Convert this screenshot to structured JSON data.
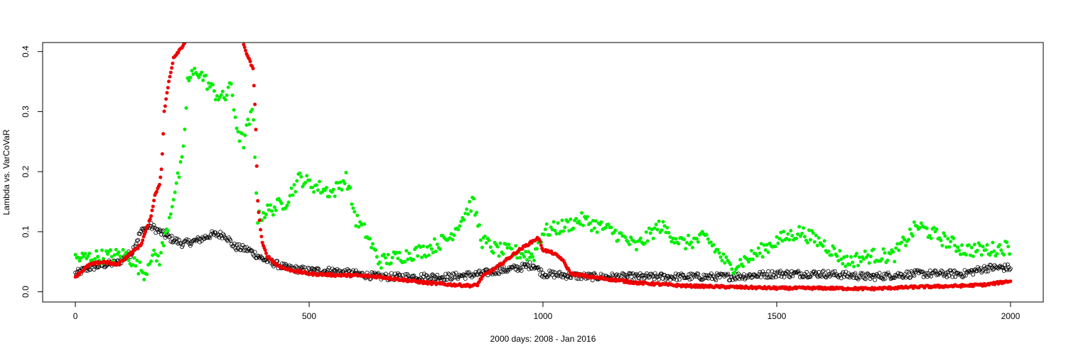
{
  "chart_data": {
    "type": "scatter",
    "xlabel": "2000 days: 2008 - Jan 2016",
    "ylabel": "Lambda vs. VarCoVaR",
    "xlim": [
      -70,
      2070
    ],
    "ylim": [
      -0.017,
      0.415
    ],
    "xticks": [
      0,
      500,
      1000,
      1500,
      2000
    ],
    "yticks": [
      0.0,
      0.1,
      0.2,
      0.3,
      0.4
    ],
    "xtick_labels": [
      "0",
      "500",
      "1000",
      "1500",
      "2000"
    ],
    "ytick_labels": [
      "0.0",
      "0.1",
      "0.2",
      "0.3",
      "0.4"
    ],
    "grid": false,
    "legend": "none",
    "series": [
      {
        "color": "#000000",
        "marker": "open-circle",
        "anchors_x": [
          0,
          30,
          60,
          90,
          120,
          140,
          160,
          180,
          200,
          230,
          260,
          290,
          320,
          340,
          370,
          400,
          450,
          500,
          550,
          600,
          650,
          700,
          800,
          870,
          900,
          950,
          980,
          1000,
          1100,
          1200,
          1300,
          1400,
          1500,
          1600,
          1700,
          1800,
          1900,
          1950,
          2000
        ],
        "anchors_y": [
          0.03,
          0.04,
          0.045,
          0.048,
          0.065,
          0.1,
          0.11,
          0.1,
          0.09,
          0.08,
          0.085,
          0.095,
          0.095,
          0.075,
          0.07,
          0.055,
          0.04,
          0.035,
          0.035,
          0.03,
          0.025,
          0.025,
          0.025,
          0.03,
          0.035,
          0.04,
          0.045,
          0.03,
          0.025,
          0.025,
          0.025,
          0.025,
          0.03,
          0.03,
          0.025,
          0.03,
          0.03,
          0.04,
          0.04
        ],
        "spread": 0.006,
        "step": 2
      },
      {
        "color": "#00ee00",
        "marker": "filled-circle",
        "anchors_x": [
          0,
          40,
          80,
          110,
          130,
          150,
          160,
          180,
          195,
          210,
          230,
          240,
          260,
          280,
          300,
          320,
          330,
          340,
          350,
          360,
          370,
          380,
          390,
          400,
          450,
          480,
          500,
          550,
          580,
          600,
          620,
          650,
          700,
          750,
          800,
          850,
          870,
          900,
          950,
          980,
          1000,
          1050,
          1080,
          1100,
          1150,
          1200,
          1250,
          1300,
          1350,
          1400,
          1450,
          1500,
          1550,
          1600,
          1650,
          1700,
          1750,
          1800,
          1850,
          1900,
          1950,
          2000
        ],
        "anchors_y": [
          0.055,
          0.058,
          0.06,
          0.062,
          0.045,
          0.03,
          0.06,
          0.055,
          0.1,
          0.16,
          0.22,
          0.35,
          0.37,
          0.35,
          0.33,
          0.32,
          0.35,
          0.3,
          0.26,
          0.25,
          0.28,
          0.3,
          0.12,
          0.13,
          0.15,
          0.19,
          0.18,
          0.165,
          0.19,
          0.12,
          0.1,
          0.05,
          0.06,
          0.07,
          0.09,
          0.15,
          0.085,
          0.07,
          0.065,
          0.06,
          0.1,
          0.11,
          0.12,
          0.115,
          0.1,
          0.075,
          0.11,
          0.08,
          0.09,
          0.04,
          0.06,
          0.085,
          0.1,
          0.08,
          0.05,
          0.06,
          0.06,
          0.11,
          0.09,
          0.07,
          0.07,
          0.075
        ],
        "spread": 0.012,
        "step": 3
      },
      {
        "color": "#ee0000",
        "marker": "filled-circle",
        "anchors_x": [
          0,
          30,
          60,
          90,
          120,
          140,
          150,
          160,
          170,
          180,
          185,
          190,
          200,
          210,
          220,
          230,
          245,
          260,
          300,
          350,
          360,
          370,
          380,
          385,
          390,
          395,
          400,
          410,
          430,
          450,
          500,
          550,
          600,
          650,
          700,
          750,
          800,
          850,
          860,
          870,
          900,
          950,
          980,
          990,
          1000,
          1020,
          1040,
          1060,
          1100,
          1200,
          1300,
          1400,
          1500,
          1600,
          1700,
          1800,
          1900,
          1950,
          2000
        ],
        "anchors_y": [
          0.025,
          0.045,
          0.05,
          0.045,
          0.065,
          0.078,
          0.1,
          0.12,
          0.16,
          0.18,
          0.21,
          0.3,
          0.35,
          0.39,
          0.4,
          0.41,
          0.43,
          0.45,
          0.45,
          0.45,
          0.41,
          0.39,
          0.37,
          0.3,
          0.15,
          0.11,
          0.08,
          0.06,
          0.045,
          0.038,
          0.03,
          0.028,
          0.027,
          0.025,
          0.02,
          0.015,
          0.012,
          0.01,
          0.012,
          0.025,
          0.04,
          0.07,
          0.085,
          0.09,
          0.07,
          0.065,
          0.055,
          0.03,
          0.025,
          0.015,
          0.01,
          0.008,
          0.006,
          0.006,
          0.005,
          0.008,
          0.01,
          0.012,
          0.018
        ],
        "spread": 0.002,
        "step": 2
      }
    ]
  }
}
